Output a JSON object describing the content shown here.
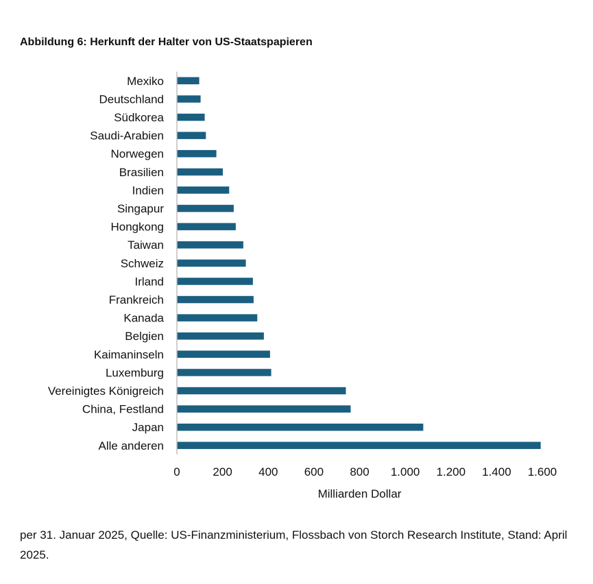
{
  "title": "Abbildung 6: Herkunft der Halter von US-Staatspapieren",
  "note": "per 31. Januar 2025, Quelle: US-Finanzministerium, Flossbach von Storch Research Institute, Stand: April 2025.",
  "colors": {
    "bar": "#1b5f80",
    "axis": "#bfbfbf"
  },
  "chart_data": {
    "type": "bar",
    "orientation": "horizontal",
    "categories": [
      "Mexiko",
      "Deutschland",
      "Südkorea",
      "Saudi-Arabien",
      "Norwegen",
      "Brasilien",
      "Indien",
      "Singapur",
      "Hongkong",
      "Taiwan",
      "Schweiz",
      "Irland",
      "Frankreich",
      "Kanada",
      "Belgien",
      "Kaimaninseln",
      "Luxemburg",
      "Vereinigtes Königreich",
      "China, Festland",
      "Japan",
      "Alle anderen"
    ],
    "values": [
      98,
      104,
      122,
      127,
      173,
      201,
      229,
      249,
      258,
      291,
      302,
      333,
      336,
      352,
      381,
      408,
      413,
      740,
      761,
      1079,
      1593
    ],
    "xlim": [
      0,
      1600
    ],
    "xticks": [
      0,
      200,
      400,
      600,
      800,
      1000,
      1200,
      1400,
      1600
    ],
    "xtick_labels": [
      "0",
      "200",
      "400",
      "600",
      "800",
      "1.000",
      "1.200",
      "1.400",
      "1.600"
    ],
    "xlabel": "Milliarden Dollar",
    "ylabel": "",
    "grid": false,
    "legend": "none"
  }
}
